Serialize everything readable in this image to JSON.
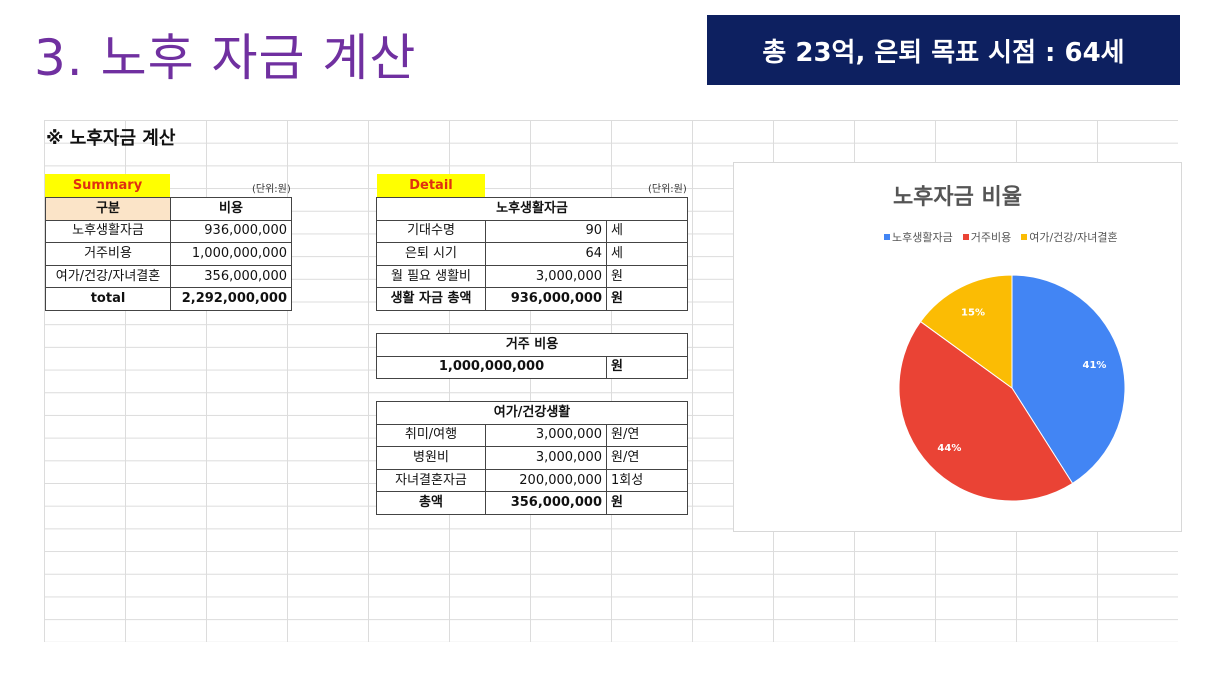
{
  "slide": {
    "title": "3. 노후 자금 계산",
    "goal": "총 23억, 은퇴 목표 시점 : 64세"
  },
  "sheet": {
    "heading": "※ 노후자금 계산",
    "summary": {
      "label": "Summary",
      "unit": "(단위:원)",
      "header": [
        "구분",
        "비용"
      ],
      "rows": [
        [
          "노후생활자금",
          "936,000,000"
        ],
        [
          "거주비용",
          "1,000,000,000"
        ],
        [
          "여가/건강/자녀결혼",
          "356,000,000"
        ],
        [
          "total",
          "2,292,000,000"
        ]
      ]
    },
    "detail": {
      "label": "Detail",
      "unit": "(단위:원)",
      "living": {
        "title": "노후생활자금",
        "rows": [
          [
            "기대수명",
            "90",
            "세"
          ],
          [
            "은퇴 시기",
            "64",
            "세"
          ],
          [
            "월 필요 생활비",
            "3,000,000",
            "원"
          ],
          [
            "생활 자금 총액",
            "936,000,000",
            "원"
          ]
        ]
      },
      "housing": {
        "title": "거주 비용",
        "value": "1,000,000,000",
        "unit": "원"
      },
      "leisure": {
        "title": "여가/건강생활",
        "rows": [
          [
            "취미/여행",
            "3,000,000",
            "원/연"
          ],
          [
            "병원비",
            "3,000,000",
            "원/연"
          ],
          [
            "자녀결혼자금",
            "200,000,000",
            "1회성"
          ],
          [
            "총액",
            "356,000,000",
            "원"
          ]
        ]
      }
    }
  },
  "chart_data": {
    "type": "pie",
    "title": "노후자금 비율",
    "categories": [
      "노후생활자금",
      "거주비용",
      "여가/건강/자녀결혼"
    ],
    "values": [
      41,
      44,
      15
    ],
    "labels": [
      "41%",
      "44%",
      "15%"
    ],
    "colors": [
      "#4285f4",
      "#ea4335",
      "#fbbc04"
    ],
    "legend_position": "top"
  }
}
